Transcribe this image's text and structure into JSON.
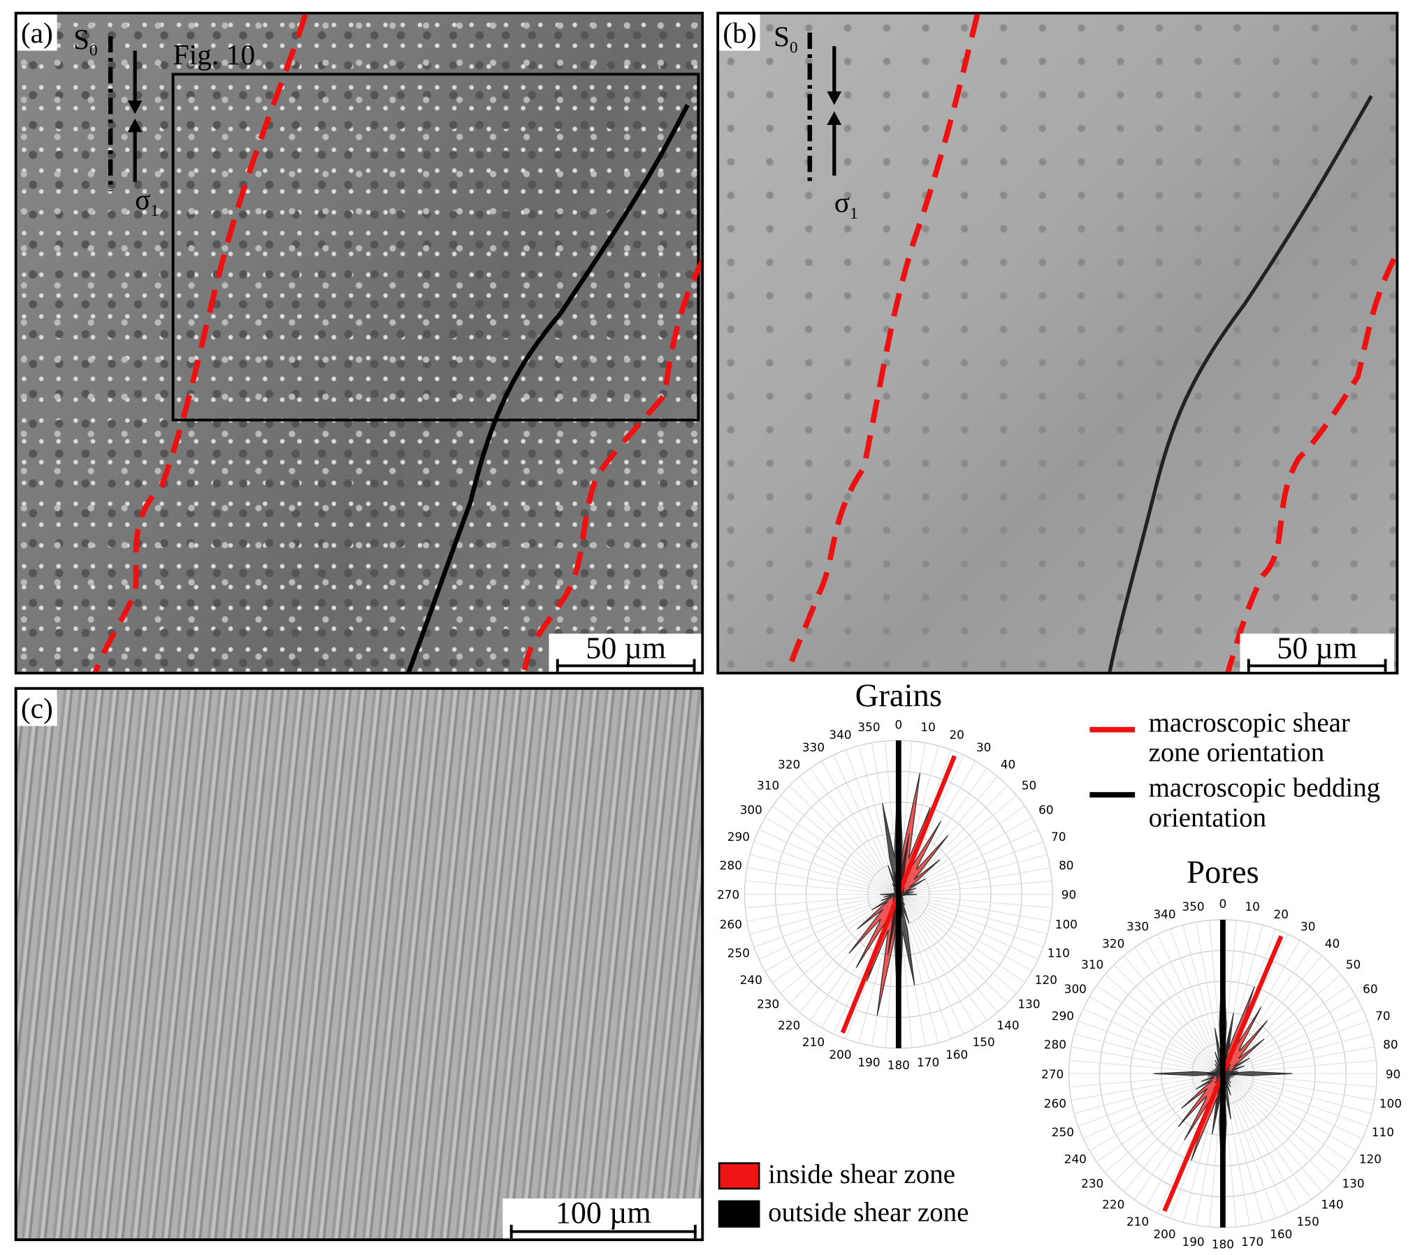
{
  "panels": {
    "a": {
      "label": "(a)",
      "s0": "S",
      "s0_sub": "0",
      "sigma": "σ",
      "sigma_sub": "1",
      "inset_label": "Fig. 10",
      "scale": "50 µm"
    },
    "b": {
      "label": "(b)",
      "s0": "S",
      "s0_sub": "0",
      "sigma": "σ",
      "sigma_sub": "1",
      "scale": "50 µm"
    },
    "c": {
      "label": "(c)",
      "scale": "100 µm"
    }
  },
  "legend": {
    "shear_line": "macroscopic shear zone orientation",
    "shear_line_l1": "macroscopic shear",
    "shear_line_l2": "zone orientation",
    "bedding_line_l1": "macroscopic bedding",
    "bedding_line_l2": "orientation",
    "inside": "inside shear zone",
    "outside": "outside shear zone"
  },
  "colors": {
    "inside": "#f01414",
    "outside": "#000000",
    "shear_line": "#ee1111",
    "bedding_line": "#000000"
  },
  "chart_data": [
    {
      "type": "rose",
      "title": "Grains",
      "angles": [
        0,
        10,
        20,
        30,
        40,
        50,
        60,
        70,
        80,
        90,
        100,
        110,
        120,
        130,
        140,
        150,
        160,
        170,
        180,
        190,
        200,
        210,
        220,
        230,
        240,
        250,
        260,
        270,
        280,
        290,
        300,
        310,
        320,
        330,
        340,
        350
      ],
      "series": [
        {
          "name": "inside shear zone",
          "values": [
            0.3,
            0.8,
            0.6,
            0.55,
            0.5,
            0.35,
            0.2,
            0.12,
            0.1,
            0.05,
            0.04,
            0.03,
            0.03,
            0.03,
            0.03,
            0.04,
            0.08,
            0.15,
            0.3,
            0.8,
            0.6,
            0.55,
            0.5,
            0.35,
            0.2,
            0.12,
            0.1,
            0.05,
            0.04,
            0.03,
            0.03,
            0.03,
            0.03,
            0.04,
            0.08,
            0.15
          ]
        },
        {
          "name": "outside shear zone",
          "values": [
            0.85,
            0.4,
            0.2,
            0.1,
            0.06,
            0.05,
            0.04,
            0.04,
            0.05,
            0.12,
            0.04,
            0.03,
            0.03,
            0.04,
            0.05,
            0.08,
            0.2,
            0.6,
            0.85,
            0.4,
            0.2,
            0.1,
            0.06,
            0.05,
            0.04,
            0.04,
            0.05,
            0.12,
            0.04,
            0.03,
            0.03,
            0.04,
            0.05,
            0.08,
            0.2,
            0.6
          ]
        }
      ],
      "shear_zone_orientation": 22,
      "bedding_orientation": 0
    },
    {
      "type": "rose",
      "title": "Pores",
      "angles": [
        0,
        10,
        20,
        30,
        40,
        50,
        60,
        70,
        80,
        90,
        100,
        110,
        120,
        130,
        140,
        150,
        160,
        170,
        180,
        190,
        200,
        210,
        220,
        230,
        240,
        250,
        260,
        270,
        280,
        290,
        300,
        310,
        320,
        330,
        340,
        350
      ],
      "series": [
        {
          "name": "inside shear zone",
          "values": [
            0.2,
            0.4,
            0.6,
            0.5,
            0.45,
            0.35,
            0.2,
            0.15,
            0.1,
            0.1,
            0.08,
            0.07,
            0.06,
            0.06,
            0.06,
            0.07,
            0.08,
            0.1,
            0.2,
            0.4,
            0.6,
            0.5,
            0.45,
            0.35,
            0.2,
            0.15,
            0.1,
            0.1,
            0.08,
            0.07,
            0.06,
            0.06,
            0.06,
            0.07,
            0.08,
            0.1
          ]
        },
        {
          "name": "outside shear zone",
          "values": [
            0.8,
            0.3,
            0.2,
            0.12,
            0.08,
            0.06,
            0.05,
            0.05,
            0.08,
            0.45,
            0.06,
            0.05,
            0.05,
            0.06,
            0.08,
            0.1,
            0.15,
            0.3,
            0.8,
            0.3,
            0.2,
            0.12,
            0.08,
            0.06,
            0.05,
            0.05,
            0.08,
            0.45,
            0.06,
            0.05,
            0.05,
            0.06,
            0.08,
            0.1,
            0.15,
            0.3
          ]
        }
      ],
      "shear_zone_orientation": 23,
      "bedding_orientation": 0
    }
  ]
}
